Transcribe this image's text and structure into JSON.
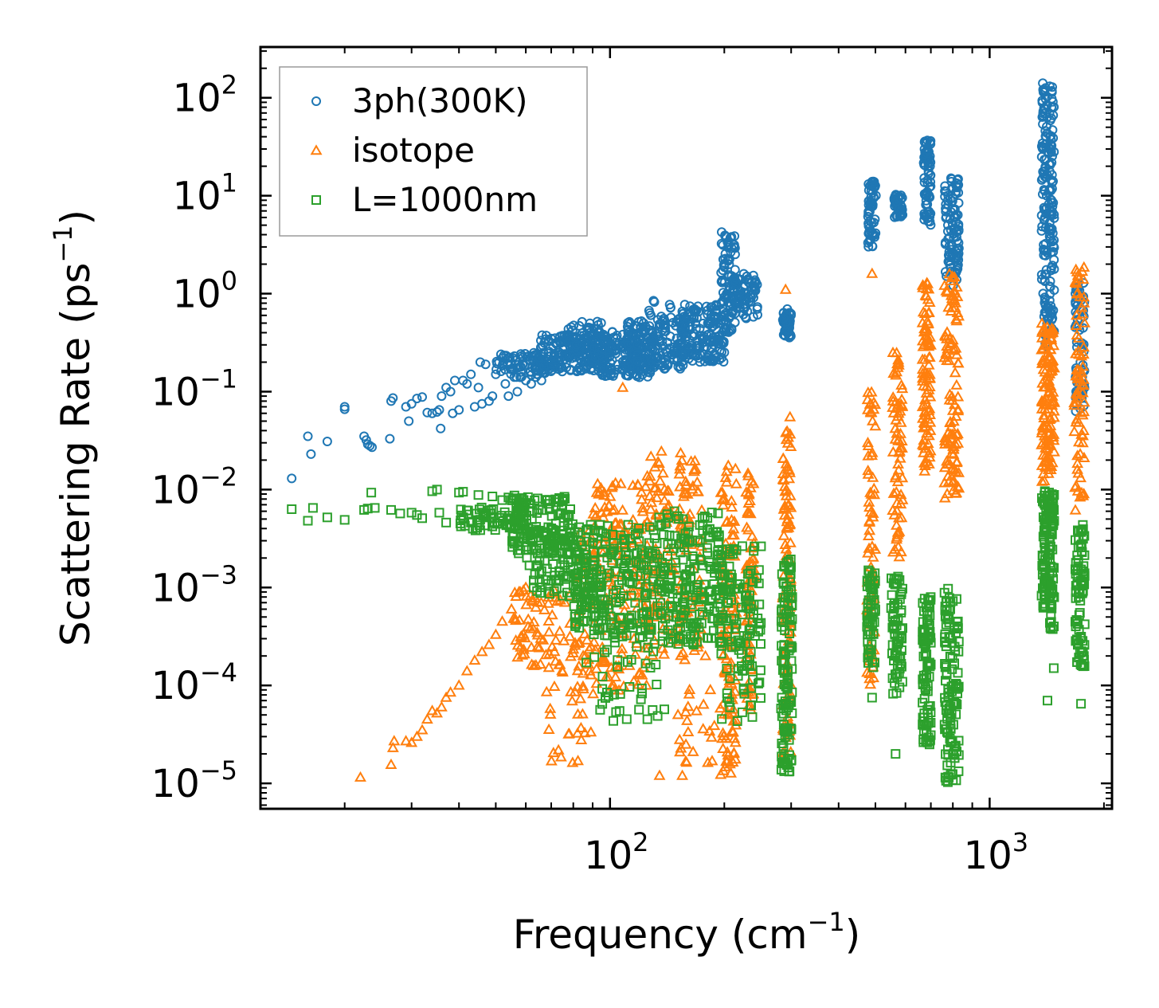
{
  "chart_data": {
    "type": "scatter",
    "xscale": "log",
    "yscale": "log",
    "xlim": [
      12,
      2100
    ],
    "ylim": [
      5.5e-06,
      330
    ],
    "xlabel": "Frequency (cm",
    "xlabel_sup": "−1",
    "xlabel_end": ")",
    "ylabel": "Scattering Rate (ps",
    "ylabel_sup": "−1",
    "ylabel_end": ")",
    "x_ticks": [
      {
        "value": 100,
        "base": "10",
        "exp": "2"
      },
      {
        "value": 1000,
        "base": "10",
        "exp": "3"
      }
    ],
    "y_ticks": [
      {
        "value": 100,
        "base": "10",
        "exp": "2"
      },
      {
        "value": 10,
        "base": "10",
        "exp": "1"
      },
      {
        "value": 1,
        "base": "10",
        "exp": "0"
      },
      {
        "value": 0.1,
        "base": "10",
        "exp": "−1"
      },
      {
        "value": 0.01,
        "base": "10",
        "exp": "−2"
      },
      {
        "value": 0.001,
        "base": "10",
        "exp": "−3"
      },
      {
        "value": 0.0001,
        "base": "10",
        "exp": "−4"
      },
      {
        "value": 1e-05,
        "base": "10",
        "exp": "−5"
      }
    ],
    "legend_position": "top-left",
    "series": [
      {
        "name": "3ph(300K)",
        "marker": "circle",
        "color": "#1f77b4",
        "points": [
          [
            14.5,
            0.013
          ],
          [
            16,
            0.035
          ],
          [
            16.3,
            0.023
          ],
          [
            18,
            0.031
          ],
          [
            20,
            0.07
          ],
          [
            20,
            0.066
          ],
          [
            22.5,
            0.035
          ],
          [
            22.8,
            0.032
          ],
          [
            23,
            0.029
          ],
          [
            23.3,
            0.028
          ],
          [
            23.6,
            0.027
          ],
          [
            26.3,
            0.033
          ],
          [
            26.5,
            0.08
          ],
          [
            26.8,
            0.086
          ],
          [
            29,
            0.07
          ],
          [
            29.5,
            0.05
          ],
          [
            30,
            0.075
          ],
          [
            31,
            0.085
          ],
          [
            32,
            0.088
          ],
          [
            33,
            0.061
          ],
          [
            34,
            0.06
          ],
          [
            35,
            0.062
          ],
          [
            35.5,
            0.065
          ],
          [
            35.8,
            0.042
          ],
          [
            36,
            0.09
          ],
          [
            37,
            0.11
          ],
          [
            38,
            0.1
          ],
          [
            38.5,
            0.06
          ],
          [
            39,
            0.13
          ],
          [
            40,
            0.065
          ],
          [
            41,
            0.13
          ],
          [
            42,
            0.12
          ],
          [
            43,
            0.15
          ],
          [
            44,
            0.07
          ],
          [
            45,
            0.11
          ],
          [
            45.5,
            0.2
          ],
          [
            46,
            0.075
          ],
          [
            47,
            0.19
          ],
          [
            48,
            0.08
          ],
          [
            49,
            0.09
          ],
          [
            50,
            0.15
          ],
          [
            51,
            0.2
          ],
          [
            52,
            0.22
          ],
          [
            53,
            0.12
          ],
          [
            54,
            0.09
          ],
          [
            55,
            0.17
          ],
          [
            57,
            0.1
          ],
          [
            58,
            0.14
          ],
          [
            60,
            0.13
          ],
          [
            62,
            0.12
          ],
          [
            64,
            0.24
          ],
          [
            66,
            0.13
          ]
        ],
        "clusters": [
          {
            "x": [
              50,
              72
            ],
            "y": [
              0.14,
              0.25
            ],
            "n": 80
          },
          {
            "x": [
              65,
              100
            ],
            "y": [
              0.16,
              0.38
            ],
            "n": 180
          },
          {
            "x": [
              75,
              95
            ],
            "y": [
              0.2,
              0.52
            ],
            "n": 70
          },
          {
            "x": [
              95,
              130
            ],
            "y": [
              0.14,
              0.42
            ],
            "n": 160
          },
          {
            "x": [
              110,
              160
            ],
            "y": [
              0.17,
              0.55
            ],
            "n": 160
          },
          {
            "x": [
              125,
              145
            ],
            "y": [
              0.45,
              0.85
            ],
            "n": 15
          },
          {
            "x": [
              150,
              200
            ],
            "y": [
              0.2,
              0.78
            ],
            "n": 160
          },
          {
            "x": [
              196,
              214
            ],
            "y": [
              0.4,
              4.4
            ],
            "n": 80
          },
          {
            "x": [
              210,
              245
            ],
            "y": [
              0.55,
              1.6
            ],
            "n": 80
          },
          {
            "x": [
              285,
              300
            ],
            "y": [
              0.35,
              0.7
            ],
            "n": 50
          },
          {
            "x": [
              478,
              502
            ],
            "y": [
              3.0,
              14
            ],
            "n": 60
          },
          {
            "x": [
              560,
              590
            ],
            "y": [
              6.0,
              10.5
            ],
            "n": 40
          },
          {
            "x": [
              670,
              700
            ],
            "y": [
              5.0,
              37
            ],
            "n": 70
          },
          {
            "x": [
              760,
              830
            ],
            "y": [
              1.2,
              16
            ],
            "n": 100
          },
          {
            "x": [
              1370,
              1420
            ],
            "y": [
              0.28,
              150
            ],
            "n": 100
          },
          {
            "x": [
              1430,
              1480
            ],
            "y": [
              0.4,
              135
            ],
            "n": 100
          },
          {
            "x": [
              1680,
              1780
            ],
            "y": [
              0.06,
              1.3
            ],
            "n": 70
          }
        ]
      },
      {
        "name": "isotope",
        "marker": "triangle",
        "color": "#ff7f0e",
        "points": [
          [
            22,
            1.15e-05
          ],
          [
            26.5,
            1.55e-05
          ],
          [
            26.8,
            2.3e-05
          ],
          [
            27,
            2.7e-05
          ],
          [
            29,
            2.7e-05
          ],
          [
            30,
            2.6e-05
          ],
          [
            31,
            3e-05
          ],
          [
            32,
            3.5e-05
          ],
          [
            33,
            4.5e-05
          ],
          [
            34,
            5.5e-05
          ],
          [
            35,
            5.2e-05
          ],
          [
            36,
            6e-05
          ],
          [
            37,
            7.5e-05
          ],
          [
            38,
            8.5e-05
          ],
          [
            40,
            0.0001
          ],
          [
            42,
            0.00014
          ],
          [
            44,
            0.00018
          ],
          [
            46,
            0.00022
          ],
          [
            48,
            0.00026
          ],
          [
            50,
            0.00033
          ],
          [
            52,
            0.00045
          ],
          [
            55,
            0.0006
          ],
          [
            58,
            0.0009
          ],
          [
            60,
            0.001
          ],
          [
            108,
            0.11
          ],
          [
            135,
            1.2e-05
          ],
          [
            155,
            1.2e-05
          ],
          [
            290,
            1.1
          ],
          [
            490,
            1.6
          ]
        ],
        "clusters": [
          {
            "x": [
              55,
              80
            ],
            "y": [
              0.00015,
              0.001
            ],
            "n": 70
          },
          {
            "x": [
              68,
              90
            ],
            "y": [
              1.5e-05,
              0.0002
            ],
            "n": 35
          },
          {
            "x": [
              80,
              125
            ],
            "y": [
              8e-05,
              0.004
            ],
            "n": 140
          },
          {
            "x": [
              90,
              125
            ],
            "y": [
              0.002,
              0.012
            ],
            "n": 60
          },
          {
            "x": [
              125,
              175
            ],
            "y": [
              0.0002,
              0.025
            ],
            "n": 160
          },
          {
            "x": [
              150,
              190
            ],
            "y": [
              1.5e-05,
              0.0002
            ],
            "n": 25
          },
          {
            "x": [
              195,
              215
            ],
            "y": [
              1.2e-05,
              0.018
            ],
            "n": 120
          },
          {
            "x": [
              228,
              240
            ],
            "y": [
              5e-05,
              0.016
            ],
            "n": 70
          },
          {
            "x": [
              285,
              300
            ],
            "y": [
              2e-05,
              0.06
            ],
            "n": 100
          },
          {
            "x": [
              475,
              500
            ],
            "y": [
              0.0001,
              0.1
            ],
            "n": 70
          },
          {
            "x": [
              555,
              590
            ],
            "y": [
              0.002,
              0.25
            ],
            "n": 70
          },
          {
            "x": [
              665,
              700
            ],
            "y": [
              0.015,
              1.3
            ],
            "n": 90
          },
          {
            "x": [
              760,
              830
            ],
            "y": [
              0.008,
              1.6
            ],
            "n": 110
          },
          {
            "x": [
              1370,
              1430
            ],
            "y": [
              0.012,
              0.5
            ],
            "n": 70
          },
          {
            "x": [
              1430,
              1480
            ],
            "y": [
              0.015,
              0.45
            ],
            "n": 60
          },
          {
            "x": [
              1670,
              1780
            ],
            "y": [
              0.006,
              2.0
            ],
            "n": 80
          }
        ]
      },
      {
        "name": "L=1000nm",
        "marker": "square",
        "color": "#2ca02c",
        "points": [
          [
            14.5,
            0.0063
          ],
          [
            16.5,
            0.0065
          ],
          [
            16,
            0.0048
          ],
          [
            18,
            0.0052
          ],
          [
            20,
            0.0049
          ],
          [
            22.5,
            0.0062
          ],
          [
            23,
            0.0064
          ],
          [
            23.5,
            0.0093
          ],
          [
            24,
            0.0065
          ],
          [
            26.5,
            0.0062
          ],
          [
            28,
            0.0057
          ],
          [
            30,
            0.0058
          ],
          [
            31,
            0.0055
          ],
          [
            32,
            0.0051
          ],
          [
            34,
            0.0096
          ],
          [
            35,
            0.01
          ],
          [
            35.5,
            0.0058
          ],
          [
            37,
            0.0046
          ],
          [
            40,
            0.0093
          ],
          [
            41,
            0.0095
          ],
          [
            43,
            0.0046
          ],
          [
            45,
            0.0088
          ],
          [
            47,
            0.0053
          ],
          [
            49,
            0.0085
          ],
          [
            52,
            0.0078
          ],
          [
            54,
            0.0083
          ],
          [
            56,
            0.0087
          ],
          [
            490,
            7.5e-05
          ],
          [
            565,
            2e-05
          ],
          [
            1420,
            7e-05
          ],
          [
            1475,
            0.00015
          ],
          [
            1740,
            6.5e-05
          ]
        ],
        "clusters": [
          {
            "x": [
              40,
              60
            ],
            "y": [
              0.0038,
              0.0066
            ],
            "n": 70
          },
          {
            "x": [
              55,
              80
            ],
            "y": [
              0.0022,
              0.0085
            ],
            "n": 120
          },
          {
            "x": [
              60,
              95
            ],
            "y": [
              0.0008,
              0.004
            ],
            "n": 120
          },
          {
            "x": [
              80,
              130
            ],
            "y": [
              0.0003,
              0.0045
            ],
            "n": 220
          },
          {
            "x": [
              85,
              140
            ],
            "y": [
              4e-05,
              0.0004
            ],
            "n": 40
          },
          {
            "x": [
              130,
              200
            ],
            "y": [
              0.00025,
              0.006
            ],
            "n": 220
          },
          {
            "x": [
              195,
              250
            ],
            "y": [
              4e-05,
              0.0028
            ],
            "n": 120
          },
          {
            "x": [
              282,
              302
            ],
            "y": [
              1.3e-05,
              0.002
            ],
            "n": 120
          },
          {
            "x": [
              475,
              500
            ],
            "y": [
              0.00015,
              0.0015
            ],
            "n": 60
          },
          {
            "x": [
              550,
              590
            ],
            "y": [
              8e-05,
              0.0013
            ],
            "n": 70
          },
          {
            "x": [
              665,
              700
            ],
            "y": [
              2.5e-05,
              0.0008
            ],
            "n": 90
          },
          {
            "x": [
              760,
              830
            ],
            "y": [
              1e-05,
              0.001
            ],
            "n": 120
          },
          {
            "x": [
              1370,
              1440
            ],
            "y": [
              0.0006,
              0.01
            ],
            "n": 90
          },
          {
            "x": [
              1440,
              1480
            ],
            "y": [
              0.00035,
              0.009
            ],
            "n": 60
          },
          {
            "x": [
              1680,
              1780
            ],
            "y": [
              0.00015,
              0.0045
            ],
            "n": 80
          }
        ]
      }
    ]
  }
}
